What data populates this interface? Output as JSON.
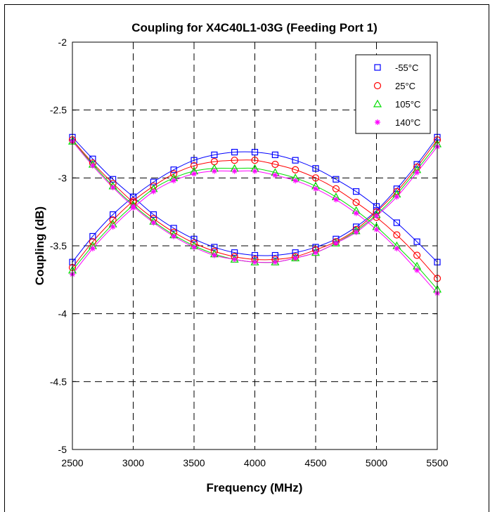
{
  "chart_data": {
    "type": "line",
    "title": "Coupling for X4C40L1-03G (Feeding Port 1)",
    "xlabel": "Frequency (MHz)",
    "ylabel": "Coupling (dB)",
    "xlim": [
      2500,
      5500
    ],
    "ylim": [
      -5,
      -2
    ],
    "xticks": [
      2500,
      3000,
      3500,
      4000,
      4500,
      5000,
      5500
    ],
    "yticks": [
      -5,
      -4.5,
      -4,
      -3.5,
      -3,
      -2.5,
      -2
    ],
    "xtick_labels": [
      "2500",
      "3000",
      "3500",
      "4000",
      "4500",
      "5000",
      "5500"
    ],
    "ytick_labels": [
      "-5",
      "-4.5",
      "-4",
      "-3.5",
      "-3",
      "-2.5",
      "-2"
    ],
    "grid": true,
    "legend_position": "top-right",
    "x": [
      2500,
      2667,
      2833,
      3000,
      3167,
      3333,
      3500,
      3667,
      3833,
      4000,
      4167,
      4333,
      4500,
      4667,
      4833,
      5000,
      5167,
      5333,
      5500
    ],
    "series": [
      {
        "name": "-55°C",
        "color": "#0000ff",
        "marker": "square",
        "curves": [
          [
            -3.62,
            -3.43,
            -3.27,
            -3.14,
            -3.03,
            -2.94,
            -2.87,
            -2.83,
            -2.81,
            -2.81,
            -2.83,
            -2.87,
            -2.93,
            -3.01,
            -3.1,
            -3.21,
            -3.33,
            -3.47,
            -3.62
          ],
          [
            -2.7,
            -2.86,
            -3.01,
            -3.14,
            -3.27,
            -3.37,
            -3.45,
            -3.51,
            -3.55,
            -3.57,
            -3.57,
            -3.55,
            -3.51,
            -3.45,
            -3.36,
            -3.24,
            -3.08,
            -2.9,
            -2.7
          ]
        ]
      },
      {
        "name": "25°C",
        "color": "#ff0000",
        "marker": "circle",
        "curves": [
          [
            -3.66,
            -3.47,
            -3.31,
            -3.17,
            -3.06,
            -2.97,
            -2.91,
            -2.88,
            -2.87,
            -2.87,
            -2.9,
            -2.94,
            -3.0,
            -3.08,
            -3.18,
            -3.29,
            -3.42,
            -3.57,
            -3.74
          ],
          [
            -2.72,
            -2.89,
            -3.04,
            -3.18,
            -3.3,
            -3.4,
            -3.48,
            -3.54,
            -3.58,
            -3.6,
            -3.6,
            -3.58,
            -3.53,
            -3.47,
            -3.38,
            -3.25,
            -3.1,
            -2.92,
            -2.72
          ]
        ]
      },
      {
        "name": "105°C",
        "color": "#00dd00",
        "marker": "triangle",
        "curves": [
          [
            -3.68,
            -3.5,
            -3.34,
            -3.2,
            -3.08,
            -3.0,
            -2.95,
            -2.93,
            -2.93,
            -2.93,
            -2.96,
            -3.0,
            -3.06,
            -3.14,
            -3.24,
            -3.36,
            -3.5,
            -3.65,
            -3.82
          ],
          [
            -2.73,
            -2.9,
            -3.06,
            -3.2,
            -3.32,
            -3.42,
            -3.5,
            -3.56,
            -3.6,
            -3.62,
            -3.62,
            -3.59,
            -3.55,
            -3.48,
            -3.39,
            -3.27,
            -3.12,
            -2.94,
            -2.75
          ]
        ]
      },
      {
        "name": "140°C",
        "color": "#ff00ff",
        "marker": "asterisk",
        "curves": [
          [
            -3.71,
            -3.52,
            -3.36,
            -3.22,
            -3.1,
            -3.02,
            -2.97,
            -2.95,
            -2.95,
            -2.95,
            -2.98,
            -3.02,
            -3.08,
            -3.16,
            -3.26,
            -3.38,
            -3.52,
            -3.68,
            -3.85
          ],
          [
            -2.73,
            -2.91,
            -3.07,
            -3.21,
            -3.33,
            -3.43,
            -3.51,
            -3.57,
            -3.6,
            -3.62,
            -3.62,
            -3.59,
            -3.55,
            -3.48,
            -3.4,
            -3.28,
            -3.14,
            -2.96,
            -2.77
          ]
        ]
      }
    ]
  }
}
